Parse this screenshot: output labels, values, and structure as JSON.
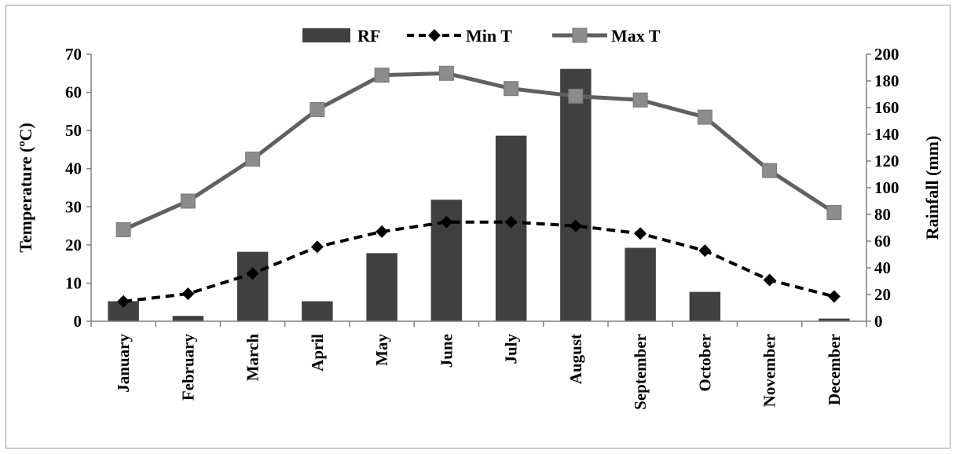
{
  "chart_data": {
    "type": "bar",
    "categories": [
      "January",
      "February",
      "March",
      "April",
      "May",
      "June",
      "July",
      "August",
      "September",
      "October",
      "November",
      "December"
    ],
    "series": [
      {
        "name": "RF",
        "type": "bar",
        "axis": "right",
        "color": "#404040",
        "values": [
          15,
          4,
          52,
          15,
          51,
          91,
          139,
          189,
          55,
          22,
          0,
          2
        ]
      },
      {
        "name": "Min T",
        "type": "line",
        "style": "dashed",
        "marker": "diamond",
        "axis": "left",
        "color": "#000000",
        "values": [
          5.2,
          7.2,
          12.5,
          19.5,
          23.5,
          26,
          26,
          25,
          23,
          18.5,
          10.8,
          6.5
        ]
      },
      {
        "name": "Max T",
        "type": "line",
        "style": "solid",
        "marker": "square",
        "axis": "left",
        "color": "#606060",
        "marker_color": "#8c8c8c",
        "values": [
          24,
          31.5,
          42.5,
          55.5,
          64.5,
          65,
          61,
          59,
          58,
          53.5,
          39.5,
          28.5
        ]
      }
    ],
    "ylabel": "Temperature (ºC)",
    "y2label": "Rainfall (mm)",
    "ylim": [
      0,
      70
    ],
    "y2lim": [
      0,
      200
    ],
    "yticks": [
      "0",
      "10",
      "20",
      "30",
      "40",
      "50",
      "60",
      "70"
    ],
    "y2ticks": [
      "0",
      "20",
      "40",
      "60",
      "80",
      "100",
      "120",
      "140",
      "160",
      "180",
      "200"
    ],
    "legend_position": "top-center",
    "grid": false
  }
}
